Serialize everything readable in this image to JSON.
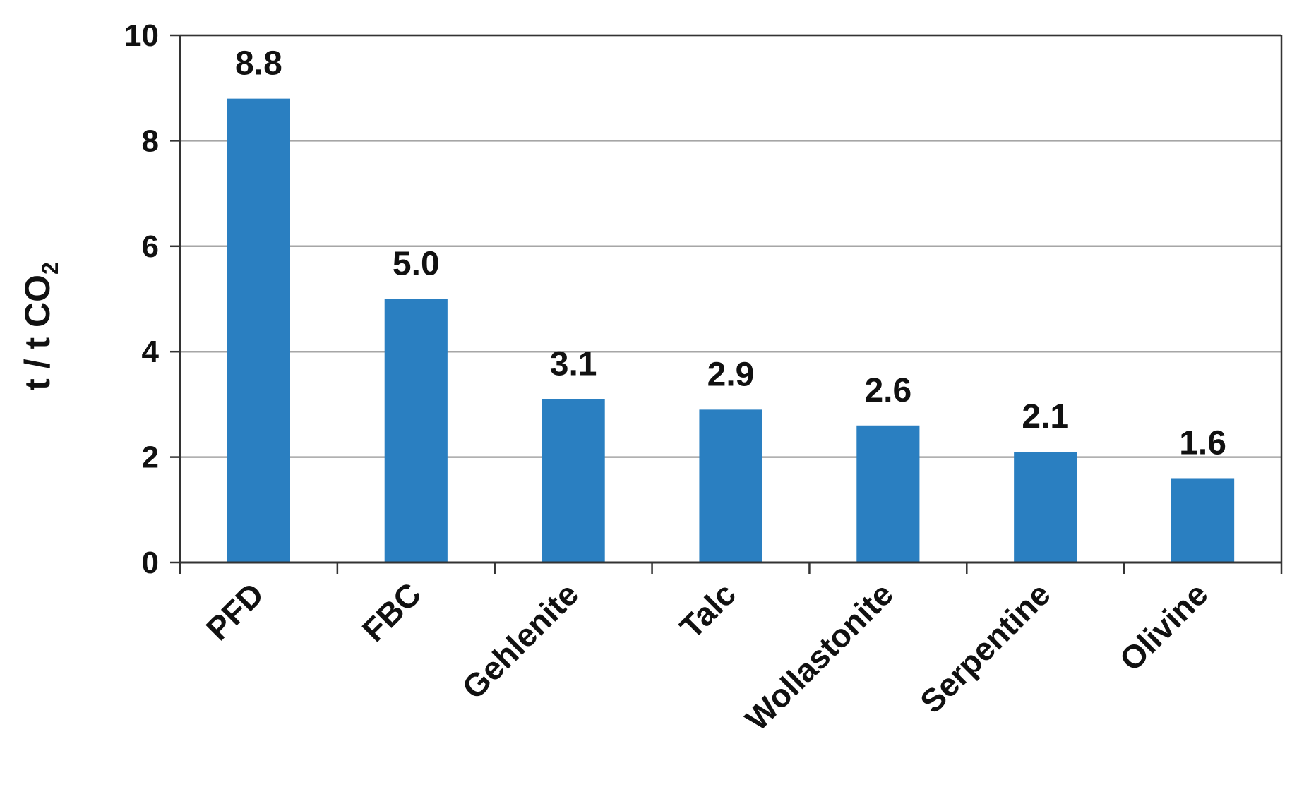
{
  "chart_data": {
    "type": "bar",
    "title": "",
    "xlabel": "",
    "ylabel": "t / t CO",
    "ylabel_subscript": "2",
    "categories": [
      "PFD",
      "FBC",
      "Gehlenite",
      "Talc",
      "Wollastonite",
      "Serpentine",
      "Olivine"
    ],
    "values": [
      8.8,
      5.0,
      3.1,
      2.9,
      2.6,
      2.1,
      1.6
    ],
    "data_labels": [
      "8.8",
      "5.0",
      "3.1",
      "2.9",
      "2.6",
      "2.1",
      "1.6"
    ],
    "ylim": [
      0,
      10
    ],
    "yticks": [
      0,
      2,
      4,
      6,
      8,
      10
    ],
    "ytick_labels": [
      "0",
      "2",
      "4",
      "6",
      "8",
      "10"
    ],
    "grid": true,
    "legend": "none",
    "bar_color": "#2A7FC1",
    "grid_color": "#A6A6A6"
  }
}
